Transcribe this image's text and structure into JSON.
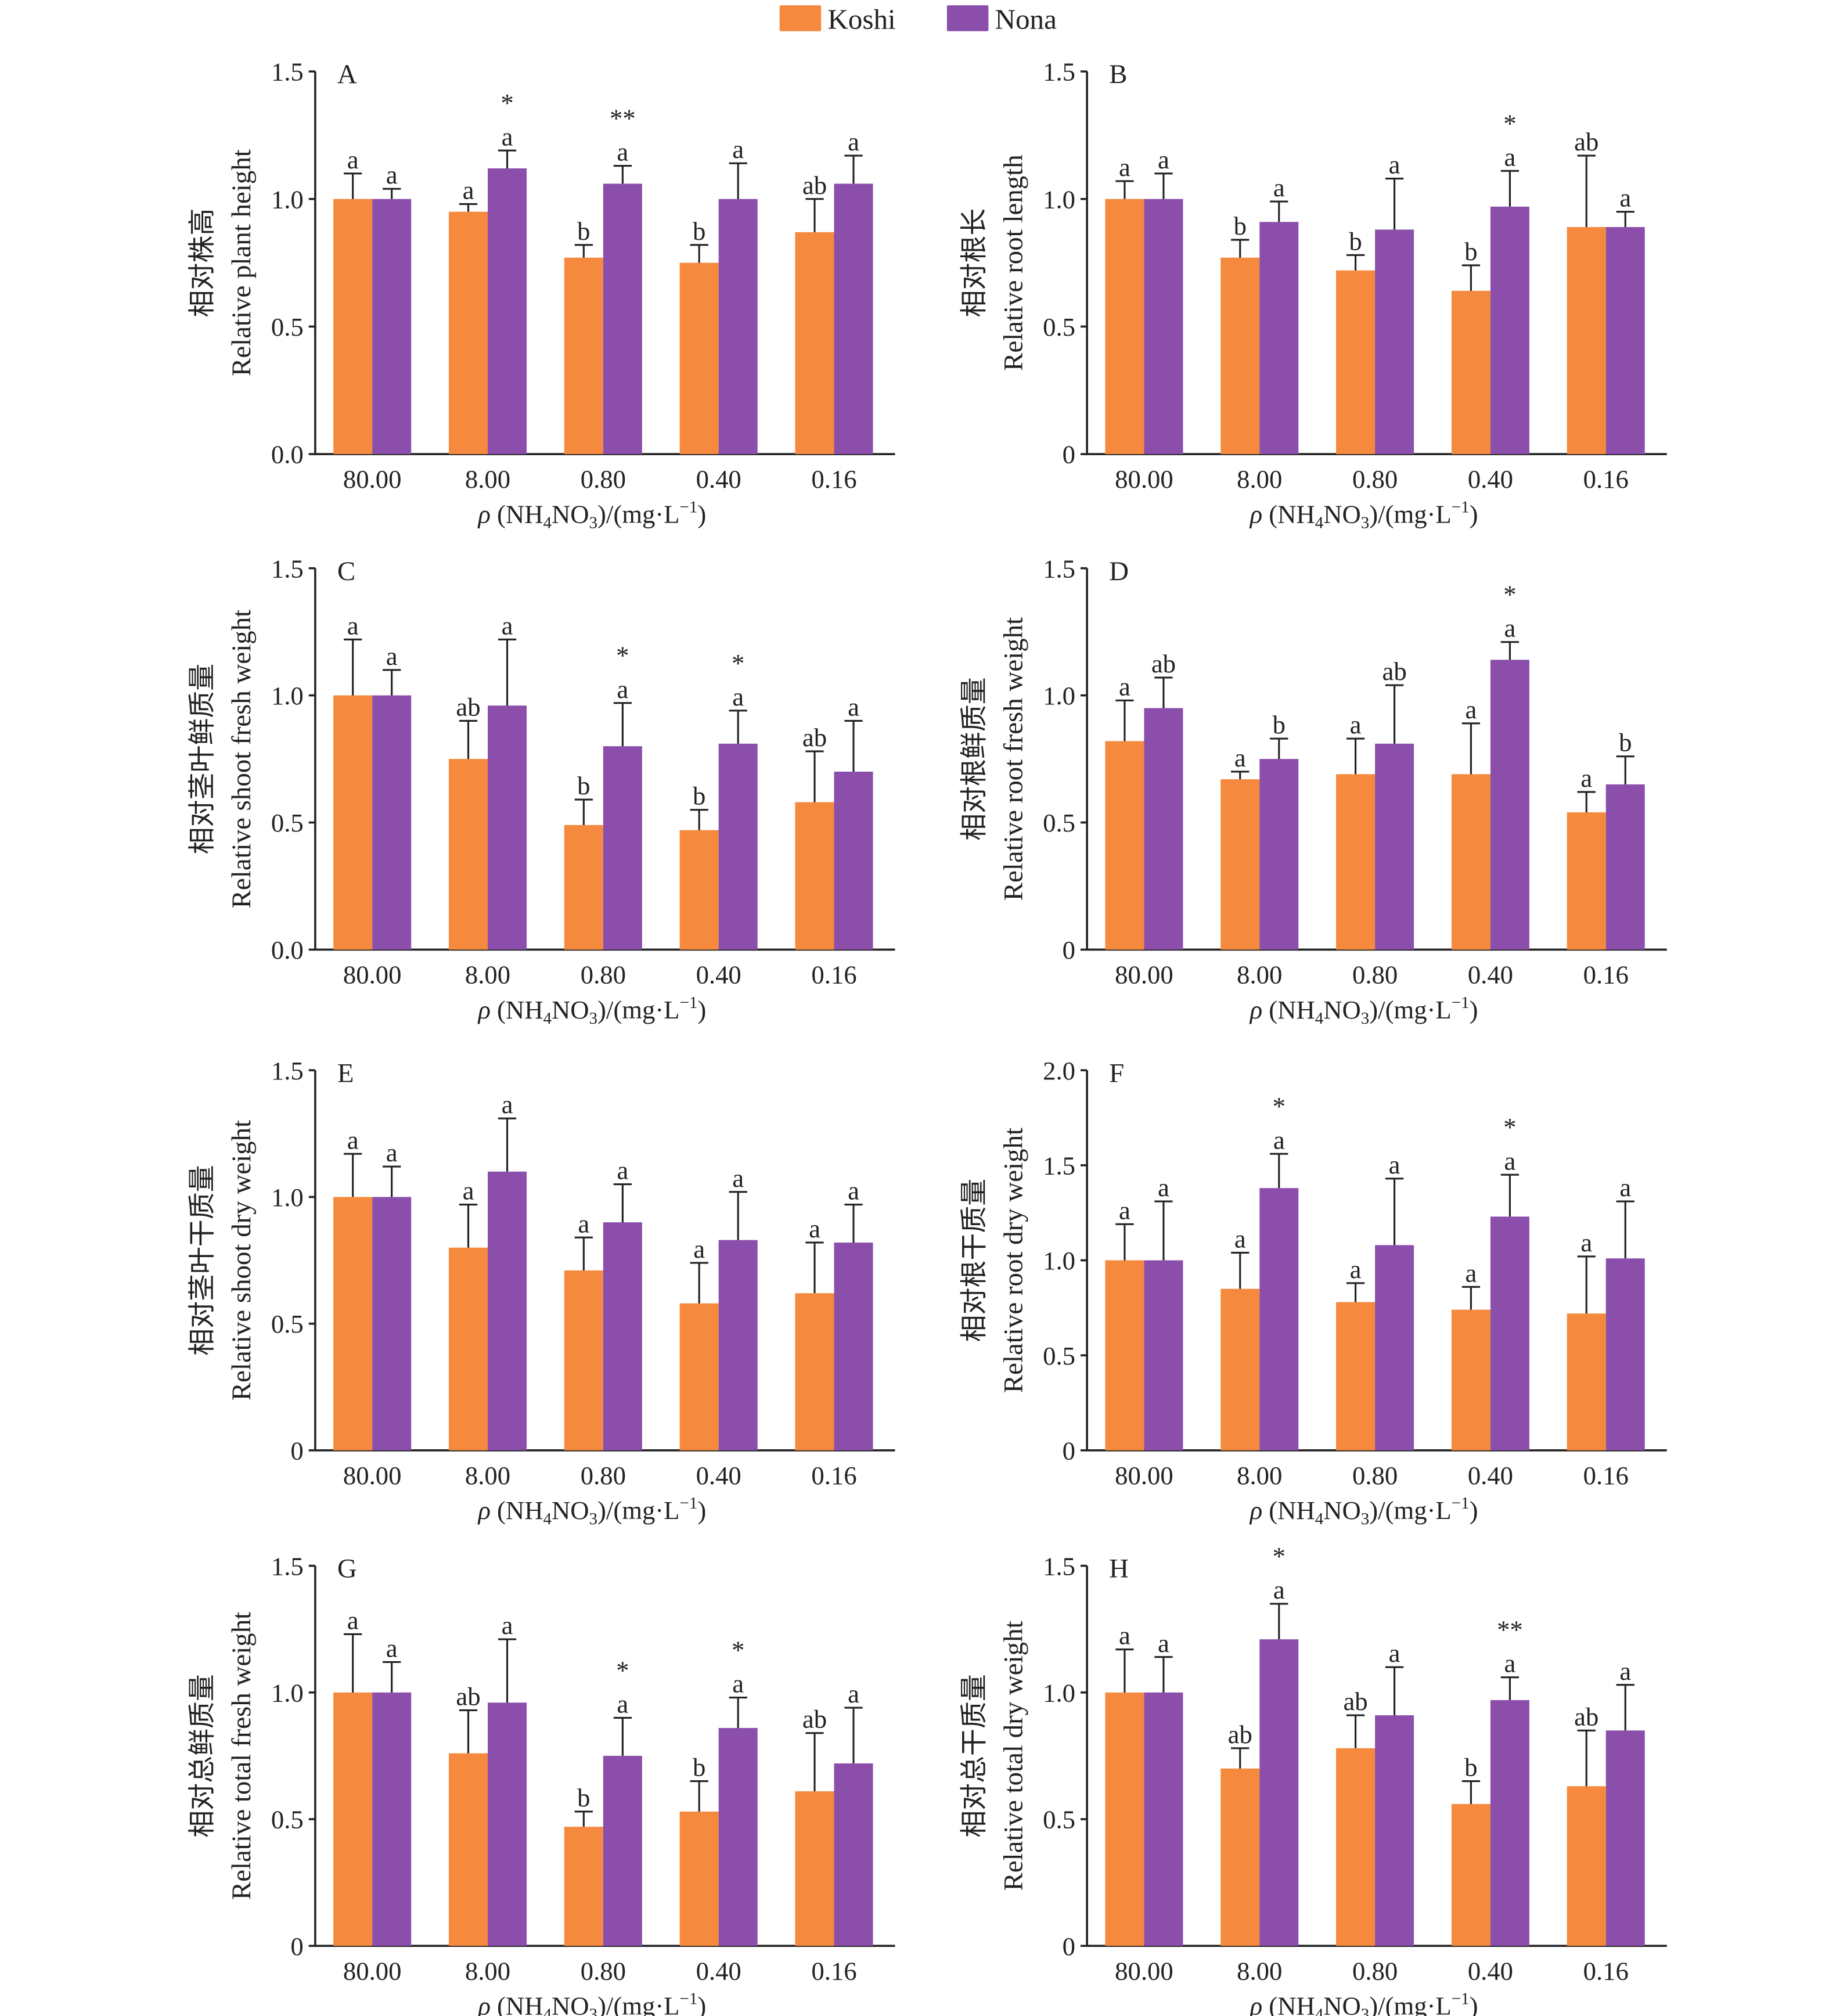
{
  "legend": {
    "placement": "top-center",
    "items": [
      {
        "name": "Koshi",
        "color": "#F5893D"
      },
      {
        "name": "Nona",
        "color": "#8B4FAB"
      }
    ]
  },
  "chart_data": [
    {
      "panel": "A",
      "type": "bar",
      "ylabel_cn": "相对株高",
      "ylabel_en": "Relative plant height",
      "ylim": [
        0,
        1.5
      ],
      "yticks": [
        "0.0",
        "0.5",
        "1.0",
        "1.5"
      ],
      "categories": [
        "80.00",
        "8.00",
        "0.80",
        "0.40",
        "0.16"
      ],
      "series": [
        {
          "name": "Koshi",
          "values": [
            1.0,
            0.95,
            0.77,
            0.75,
            0.87
          ],
          "error_top": [
            1.1,
            0.98,
            0.82,
            0.82,
            1.0
          ],
          "letters": [
            "a",
            "a",
            "b",
            "b",
            "ab"
          ],
          "stars": [
            "",
            "",
            "",
            "",
            ""
          ]
        },
        {
          "name": "Nona",
          "values": [
            1.0,
            1.12,
            1.06,
            1.0,
            1.06
          ],
          "error_top": [
            1.04,
            1.19,
            1.13,
            1.14,
            1.17
          ],
          "letters": [
            "a",
            "a",
            "a",
            "a",
            "a"
          ],
          "stars": [
            "",
            "*",
            "**",
            "",
            ""
          ]
        }
      ]
    },
    {
      "panel": "B",
      "type": "bar",
      "ylabel_cn": "相对根长",
      "ylabel_en": "Relative root length",
      "ylim": [
        0,
        1.5
      ],
      "yticks": [
        "0",
        "0.5",
        "1.0",
        "1.5"
      ],
      "categories": [
        "80.00",
        "8.00",
        "0.80",
        "0.40",
        "0.16"
      ],
      "series": [
        {
          "name": "Koshi",
          "values": [
            1.0,
            0.77,
            0.72,
            0.64,
            0.89
          ],
          "error_top": [
            1.07,
            0.84,
            0.78,
            0.74,
            1.17
          ],
          "letters": [
            "a",
            "b",
            "b",
            "b",
            "ab"
          ],
          "stars": [
            "",
            "",
            "",
            "",
            ""
          ]
        },
        {
          "name": "Nona",
          "values": [
            1.0,
            0.91,
            0.88,
            0.97,
            0.89
          ],
          "error_top": [
            1.1,
            0.99,
            1.08,
            1.11,
            0.95
          ],
          "letters": [
            "a",
            "a",
            "a",
            "a",
            "a"
          ],
          "stars": [
            "",
            "",
            "",
            "*",
            ""
          ]
        }
      ]
    },
    {
      "panel": "C",
      "type": "bar",
      "ylabel_cn": "相对茎叶鲜质量",
      "ylabel_en": "Relative shoot fresh weight",
      "ylim": [
        0,
        1.5
      ],
      "yticks": [
        "0.0",
        "0.5",
        "1.0",
        "1.5"
      ],
      "categories": [
        "80.00",
        "8.00",
        "0.80",
        "0.40",
        "0.16"
      ],
      "series": [
        {
          "name": "Koshi",
          "values": [
            1.0,
            0.75,
            0.49,
            0.47,
            0.58
          ],
          "error_top": [
            1.22,
            0.9,
            0.59,
            0.55,
            0.78
          ],
          "letters": [
            "a",
            "ab",
            "b",
            "b",
            "ab"
          ],
          "stars": [
            "",
            "",
            "",
            "",
            ""
          ]
        },
        {
          "name": "Nona",
          "values": [
            1.0,
            0.96,
            0.8,
            0.81,
            0.7
          ],
          "error_top": [
            1.1,
            1.22,
            0.97,
            0.94,
            0.9
          ],
          "letters": [
            "a",
            "a",
            "a",
            "a",
            "a"
          ],
          "stars": [
            "",
            "",
            "*",
            "*",
            ""
          ]
        }
      ]
    },
    {
      "panel": "D",
      "type": "bar",
      "ylabel_cn": "相对根鲜质量",
      "ylabel_en": "Relative root fresh weight",
      "ylim": [
        0,
        1.5
      ],
      "yticks": [
        "0",
        "0.5",
        "1.0",
        "1.5"
      ],
      "categories": [
        "80.00",
        "8.00",
        "0.80",
        "0.40",
        "0.16"
      ],
      "series": [
        {
          "name": "Koshi",
          "values": [
            0.82,
            0.67,
            0.69,
            0.69,
            0.54
          ],
          "error_top": [
            0.98,
            0.7,
            0.83,
            0.89,
            0.62
          ],
          "letters": [
            "a",
            "a",
            "a",
            "a",
            "a"
          ],
          "stars": [
            "",
            "",
            "",
            "",
            ""
          ]
        },
        {
          "name": "Nona",
          "values": [
            0.95,
            0.75,
            0.81,
            1.14,
            0.65
          ],
          "error_top": [
            1.07,
            0.83,
            1.04,
            1.21,
            0.76
          ],
          "letters": [
            "ab",
            "b",
            "ab",
            "a",
            "b"
          ],
          "stars": [
            "",
            "",
            "",
            "*",
            ""
          ]
        }
      ]
    },
    {
      "panel": "E",
      "type": "bar",
      "ylabel_cn": "相对茎叶干质量",
      "ylabel_en": "Relative shoot dry weight",
      "ylim": [
        0,
        1.5
      ],
      "yticks": [
        "0",
        "0.5",
        "1.0",
        "1.5"
      ],
      "categories": [
        "80.00",
        "8.00",
        "0.80",
        "0.40",
        "0.16"
      ],
      "series": [
        {
          "name": "Koshi",
          "values": [
            1.0,
            0.8,
            0.71,
            0.58,
            0.62
          ],
          "error_top": [
            1.17,
            0.97,
            0.84,
            0.74,
            0.82
          ],
          "letters": [
            "a",
            "a",
            "a",
            "a",
            "a"
          ],
          "stars": [
            "",
            "",
            "",
            "",
            ""
          ]
        },
        {
          "name": "Nona",
          "values": [
            1.0,
            1.1,
            0.9,
            0.83,
            0.82
          ],
          "error_top": [
            1.12,
            1.31,
            1.05,
            1.02,
            0.97
          ],
          "letters": [
            "a",
            "a",
            "a",
            "a",
            "a"
          ],
          "stars": [
            "",
            "",
            "",
            "",
            ""
          ]
        }
      ]
    },
    {
      "panel": "F",
      "type": "bar",
      "ylabel_cn": "相对根干质量",
      "ylabel_en": "Relative root dry weight",
      "ylim": [
        0,
        2.0
      ],
      "yticks": [
        "0",
        "0.5",
        "1.0",
        "1.5",
        "2.0"
      ],
      "categories": [
        "80.00",
        "8.00",
        "0.80",
        "0.40",
        "0.16"
      ],
      "series": [
        {
          "name": "Koshi",
          "values": [
            1.0,
            0.85,
            0.78,
            0.74,
            0.72
          ],
          "error_top": [
            1.19,
            1.04,
            0.88,
            0.86,
            1.02
          ],
          "letters": [
            "a",
            "a",
            "a",
            "a",
            "a"
          ],
          "stars": [
            "",
            "",
            "",
            "",
            ""
          ]
        },
        {
          "name": "Nona",
          "values": [
            1.0,
            1.38,
            1.08,
            1.23,
            1.01
          ],
          "error_top": [
            1.31,
            1.56,
            1.43,
            1.45,
            1.31
          ],
          "letters": [
            "a",
            "a",
            "a",
            "a",
            "a"
          ],
          "stars": [
            "",
            "*",
            "",
            "*",
            ""
          ]
        }
      ]
    },
    {
      "panel": "G",
      "type": "bar",
      "ylabel_cn": "相对总鲜质量",
      "ylabel_en": "Relative total fresh weight",
      "ylim": [
        0,
        1.5
      ],
      "yticks": [
        "0",
        "0.5",
        "1.0",
        "1.5"
      ],
      "categories": [
        "80.00",
        "8.00",
        "0.80",
        "0.40",
        "0.16"
      ],
      "series": [
        {
          "name": "Koshi",
          "values": [
            1.0,
            0.76,
            0.47,
            0.53,
            0.61
          ],
          "error_top": [
            1.23,
            0.93,
            0.53,
            0.65,
            0.84
          ],
          "letters": [
            "a",
            "ab",
            "b",
            "b",
            "ab"
          ],
          "stars": [
            "",
            "",
            "",
            "",
            ""
          ]
        },
        {
          "name": "Nona",
          "values": [
            1.0,
            0.96,
            0.75,
            0.86,
            0.72
          ],
          "error_top": [
            1.12,
            1.21,
            0.9,
            0.98,
            0.94
          ],
          "letters": [
            "a",
            "a",
            "a",
            "a",
            "a"
          ],
          "stars": [
            "",
            "",
            "*",
            "*",
            ""
          ]
        }
      ]
    },
    {
      "panel": "H",
      "type": "bar",
      "ylabel_cn": "相对总干质量",
      "ylabel_en": "Relative total dry weight",
      "ylim": [
        0,
        1.5
      ],
      "yticks": [
        "0",
        "0.5",
        "1.0",
        "1.5"
      ],
      "categories": [
        "80.00",
        "8.00",
        "0.80",
        "0.40",
        "0.16"
      ],
      "series": [
        {
          "name": "Koshi",
          "values": [
            1.0,
            0.7,
            0.78,
            0.56,
            0.63
          ],
          "error_top": [
            1.17,
            0.78,
            0.91,
            0.65,
            0.85
          ],
          "letters": [
            "a",
            "ab",
            "ab",
            "b",
            "ab"
          ],
          "stars": [
            "",
            "",
            "",
            "",
            ""
          ]
        },
        {
          "name": "Nona",
          "values": [
            1.0,
            1.21,
            0.91,
            0.97,
            0.85
          ],
          "error_top": [
            1.14,
            1.35,
            1.1,
            1.06,
            1.03
          ],
          "letters": [
            "a",
            "a",
            "a",
            "a",
            "a"
          ],
          "stars": [
            "",
            "*",
            "",
            "**",
            ""
          ]
        }
      ]
    }
  ],
  "xlabel_parts": [
    {
      "t": "ρ",
      "style": "italic"
    },
    {
      "t": " (NH",
      "style": "normal"
    },
    {
      "t": "4",
      "style": "sub"
    },
    {
      "t": "NO",
      "style": "normal"
    },
    {
      "t": "3",
      "style": "sub"
    },
    {
      "t": ")/(mg·L",
      "style": "normal"
    },
    {
      "t": "−1",
      "style": "sup"
    },
    {
      "t": ")",
      "style": "normal"
    }
  ]
}
